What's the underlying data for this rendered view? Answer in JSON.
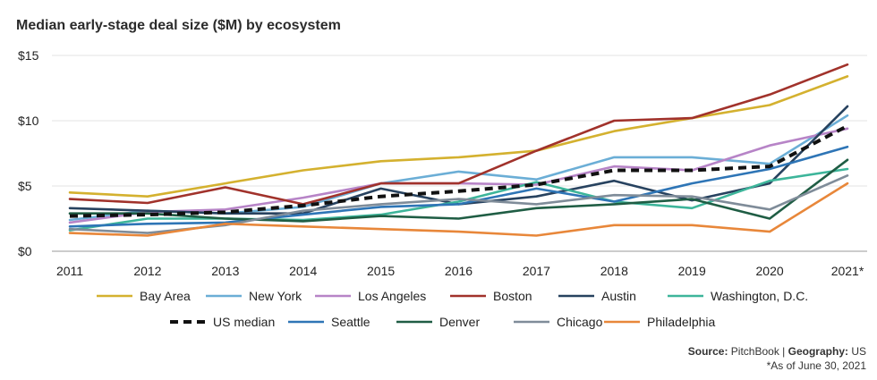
{
  "title": "Median early-stage deal size ($M) by ecosystem",
  "source": {
    "label": "Source:",
    "value": "PitchBook",
    "sep": "|",
    "geo_label": "Geography:",
    "geo_value": "US"
  },
  "note": "*As of June 30, 2021",
  "chart_data": {
    "type": "line",
    "title": "Median early-stage deal size ($M) by ecosystem",
    "xlabel": "",
    "ylabel": "",
    "x": [
      "2011",
      "2012",
      "2013",
      "2014",
      "2015",
      "2016",
      "2017",
      "2018",
      "2019",
      "2020",
      "2021*"
    ],
    "ylim": [
      0,
      15
    ],
    "yticks": [
      0,
      5,
      10,
      15
    ],
    "ytick_labels": [
      "$0",
      "$5",
      "$10",
      "$15"
    ],
    "grid": true,
    "legend_position": "bottom",
    "series": [
      {
        "name": "Bay Area",
        "color": "#d4b12f",
        "dash": false,
        "values": [
          4.5,
          4.2,
          5.2,
          6.2,
          6.9,
          7.2,
          7.7,
          9.2,
          10.2,
          11.2,
          13.4
        ]
      },
      {
        "name": "New York",
        "color": "#6baed6",
        "dash": false,
        "values": [
          2.4,
          3.1,
          2.9,
          3.4,
          5.2,
          6.1,
          5.5,
          7.2,
          7.2,
          6.7,
          10.4
        ]
      },
      {
        "name": "Los Angeles",
        "color": "#b784c7",
        "dash": false,
        "values": [
          2.2,
          3.0,
          3.2,
          4.1,
          5.2,
          5.2,
          5.1,
          6.5,
          6.2,
          8.1,
          9.4
        ]
      },
      {
        "name": "Boston",
        "color": "#a1322b",
        "dash": false,
        "values": [
          4.0,
          3.7,
          4.9,
          3.6,
          5.2,
          5.2,
          7.7,
          10.0,
          10.2,
          12.0,
          14.3
        ]
      },
      {
        "name": "Austin",
        "color": "#27425f",
        "dash": false,
        "values": [
          3.3,
          3.1,
          2.9,
          2.9,
          4.8,
          3.6,
          4.2,
          5.4,
          3.9,
          5.2,
          11.1
        ]
      },
      {
        "name": "Washington, D.C.",
        "color": "#3db59a",
        "dash": false,
        "values": [
          1.6,
          2.5,
          2.5,
          2.4,
          2.8,
          3.8,
          5.3,
          3.8,
          3.3,
          5.4,
          6.3
        ]
      },
      {
        "name": "US median",
        "color": "#111111",
        "dash": true,
        "values": [
          2.7,
          2.8,
          3.0,
          3.5,
          4.2,
          4.6,
          5.1,
          6.2,
          6.2,
          6.5,
          9.6
        ]
      },
      {
        "name": "Seattle",
        "color": "#2e75b6",
        "dash": false,
        "values": [
          1.9,
          2.1,
          2.2,
          2.8,
          3.4,
          3.6,
          4.8,
          3.8,
          5.2,
          6.3,
          8.0
        ]
      },
      {
        "name": "Denver",
        "color": "#1f5d44",
        "dash": false,
        "values": [
          2.9,
          2.9,
          2.5,
          2.3,
          2.7,
          2.5,
          3.3,
          3.6,
          4.0,
          2.5,
          7.0
        ]
      },
      {
        "name": "Chicago",
        "color": "#7f8c99",
        "dash": false,
        "values": [
          1.7,
          1.4,
          2.0,
          3.1,
          3.6,
          4.0,
          3.6,
          4.3,
          4.2,
          3.2,
          5.8
        ]
      },
      {
        "name": "Philadelphia",
        "color": "#e8873a",
        "dash": false,
        "values": [
          1.4,
          1.2,
          2.1,
          1.9,
          1.7,
          1.5,
          1.2,
          2.0,
          2.0,
          1.5,
          5.2
        ]
      }
    ]
  }
}
